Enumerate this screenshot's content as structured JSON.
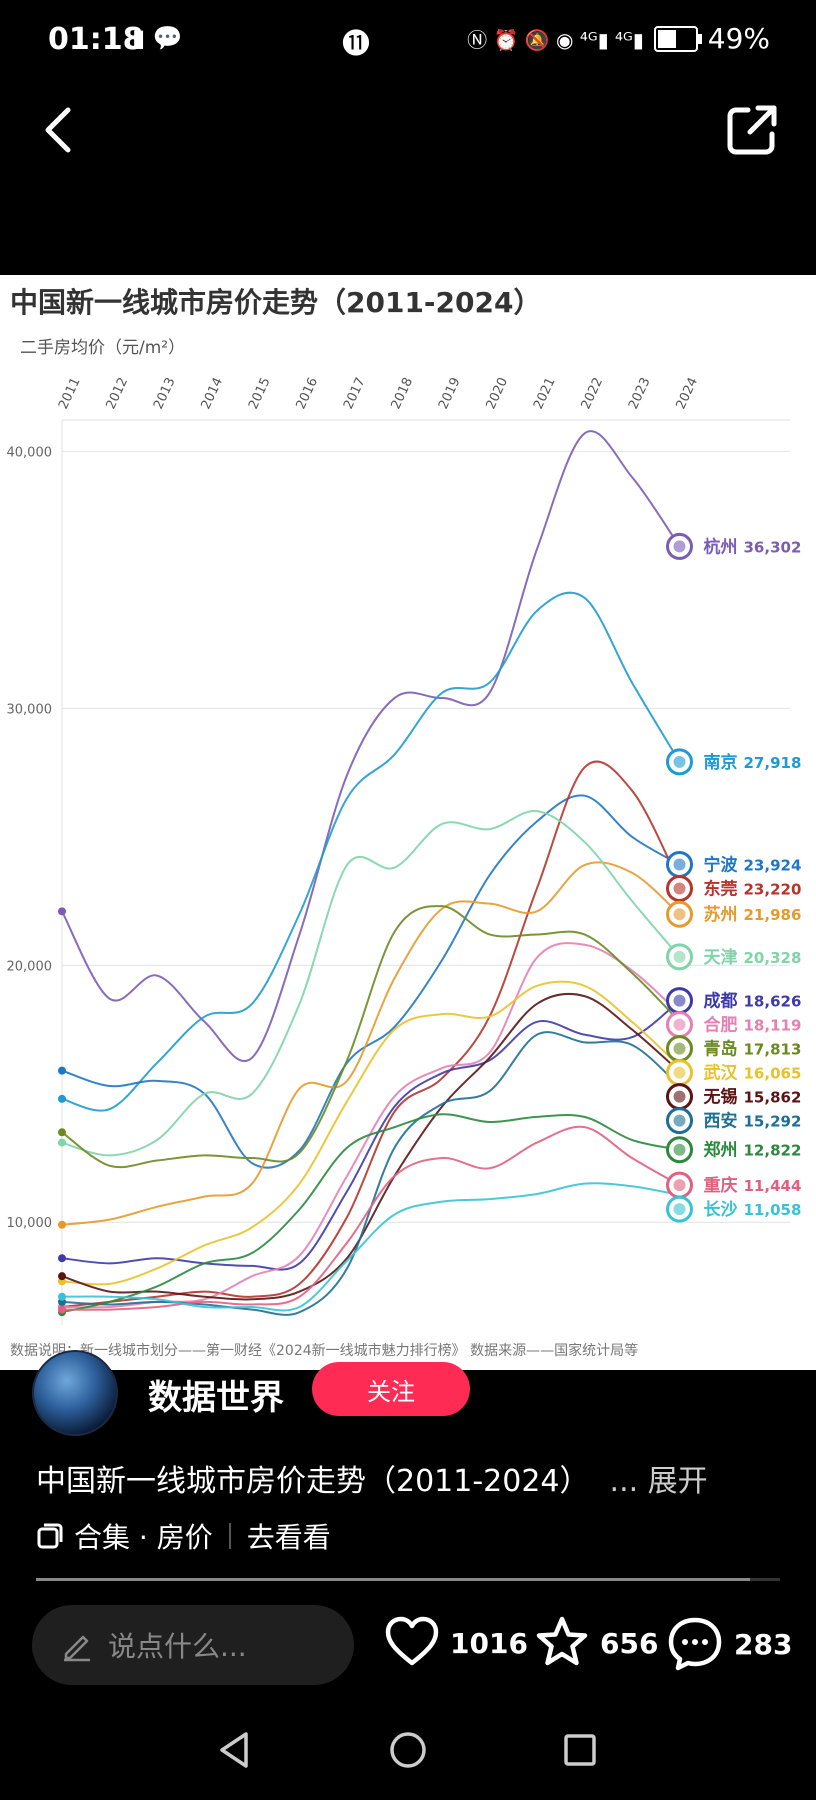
{
  "status_bar": {
    "time": "01:18",
    "left_icons": "▮ 💬",
    "mid_icon": "⓫",
    "right_icons": "Ⓝ ⏰ 🔕 ◉ ⁴ᴳ▮ ⁴ᴳ▮",
    "battery": "49%"
  },
  "chart_data": {
    "type": "line",
    "title": "中国新一线城市房价走势（2011-2024）",
    "ylabel": "二手房均价（元/m²）",
    "ylim": [
      6000,
      42000
    ],
    "yticks": [
      {
        "value": 10000,
        "label": "10,000"
      },
      {
        "value": 20000,
        "label": "20,000"
      },
      {
        "value": 30000,
        "label": "30,000"
      },
      {
        "value": 40000,
        "label": "40,000"
      }
    ],
    "x": [
      "2011",
      "2012",
      "2013",
      "2014",
      "2015",
      "2016",
      "2017",
      "2018",
      "2019",
      "2020",
      "2021",
      "2022",
      "2023",
      "2024"
    ],
    "footnote": "数据说明：新一线城市划分——第一财经《2024新一线城市魅力排行榜》 数据来源——国家统计局等",
    "series": [
      {
        "name": "杭州",
        "value_label": "36,302",
        "color": "#7b5cb5",
        "values": [
          22100,
          18700,
          19600,
          17800,
          16400,
          21200,
          27400,
          30400,
          30400,
          30600,
          36200,
          40700,
          39000,
          36302
        ]
      },
      {
        "name": "南京",
        "value_label": "27,918",
        "color": "#1e9bd0",
        "values": [
          14800,
          14400,
          16200,
          18000,
          18500,
          22000,
          26500,
          28200,
          30600,
          31000,
          33800,
          34300,
          31000,
          27918
        ]
      },
      {
        "name": "宁波",
        "value_label": "23,924",
        "color": "#1f77c4",
        "values": [
          15900,
          15300,
          15500,
          15000,
          12300,
          12800,
          16200,
          17600,
          20200,
          23500,
          25600,
          26600,
          25000,
          23924
        ]
      },
      {
        "name": "东莞",
        "value_label": "23,220",
        "color": "#b5342c",
        "values": [
          6700,
          6900,
          7100,
          7300,
          7100,
          7600,
          10200,
          14300,
          15600,
          18000,
          23000,
          27700,
          26800,
          23220
        ]
      },
      {
        "name": "苏州",
        "value_label": "21,986",
        "color": "#e59a2c",
        "values": [
          9900,
          10100,
          10600,
          11000,
          11500,
          15200,
          15500,
          19500,
          22200,
          22400,
          22100,
          23900,
          23600,
          21986
        ]
      },
      {
        "name": "天津",
        "value_label": "20,328",
        "color": "#7fd4a8",
        "values": [
          13100,
          12600,
          13200,
          15000,
          15000,
          18500,
          23900,
          23800,
          25500,
          25300,
          26000,
          24800,
          22500,
          20328
        ]
      },
      {
        "name": "成都",
        "value_label": "18,626",
        "color": "#3f3aa8",
        "values": [
          8600,
          8400,
          8600,
          8400,
          8300,
          8400,
          11200,
          14500,
          15800,
          16300,
          17800,
          17300,
          17200,
          18626
        ]
      },
      {
        "name": "合肥",
        "value_label": "18,119",
        "color": "#e67fb3",
        "values": [
          6700,
          6700,
          6900,
          7000,
          7900,
          8700,
          11800,
          14900,
          16000,
          16600,
          20300,
          20800,
          19800,
          18119
        ]
      },
      {
        "name": "青岛",
        "value_label": "17,813",
        "color": "#6b8a22",
        "values": [
          13500,
          12200,
          12400,
          12600,
          12500,
          12700,
          16300,
          21300,
          22300,
          21200,
          21200,
          21200,
          19700,
          17813
        ]
      },
      {
        "name": "武汉",
        "value_label": "16,065",
        "color": "#e8c22a",
        "values": [
          7700,
          7600,
          8200,
          9100,
          9800,
          11500,
          14700,
          17500,
          18100,
          18000,
          19200,
          19200,
          17800,
          16065
        ]
      },
      {
        "name": "无锡",
        "value_label": "15,862",
        "color": "#5a1414",
        "values": [
          7900,
          7300,
          7300,
          7100,
          7000,
          7300,
          8600,
          11800,
          14500,
          16400,
          18500,
          18800,
          17500,
          15862
        ]
      },
      {
        "name": "西安",
        "value_label": "15,292",
        "color": "#1d6f95",
        "values": [
          6900,
          6800,
          6900,
          6800,
          6600,
          6500,
          8200,
          12900,
          14600,
          15100,
          17300,
          17000,
          16900,
          15292
        ]
      },
      {
        "name": "郑州",
        "value_label": "12,822",
        "color": "#2a8a3c",
        "values": [
          6500,
          6900,
          7500,
          8400,
          8800,
          10500,
          12900,
          13700,
          14200,
          13900,
          14100,
          14100,
          13200,
          12822
        ]
      },
      {
        "name": "重庆",
        "value_label": "11,444",
        "color": "#e0617f",
        "values": [
          6600,
          6600,
          6700,
          6900,
          6800,
          7100,
          9200,
          11800,
          12500,
          12100,
          13100,
          13700,
          12500,
          11444
        ]
      },
      {
        "name": "长沙",
        "value_label": "11,058",
        "color": "#36c3d4",
        "values": [
          7100,
          7100,
          7000,
          6700,
          6700,
          6700,
          8500,
          10300,
          10800,
          10900,
          11100,
          11500,
          11400,
          11058
        ]
      }
    ]
  },
  "author": {
    "name": "数据世界",
    "follow_label": "关注"
  },
  "caption": {
    "text": "中国新一线城市房价走势（2011-2024）",
    "more": "... 展开"
  },
  "collection": {
    "label": "合集 · 房价",
    "link": "去看看"
  },
  "playback": {
    "progress": 0.96
  },
  "actions": {
    "comment_placeholder": "说点什么...",
    "likes": "1016",
    "favorites": "656",
    "comments": "283"
  }
}
